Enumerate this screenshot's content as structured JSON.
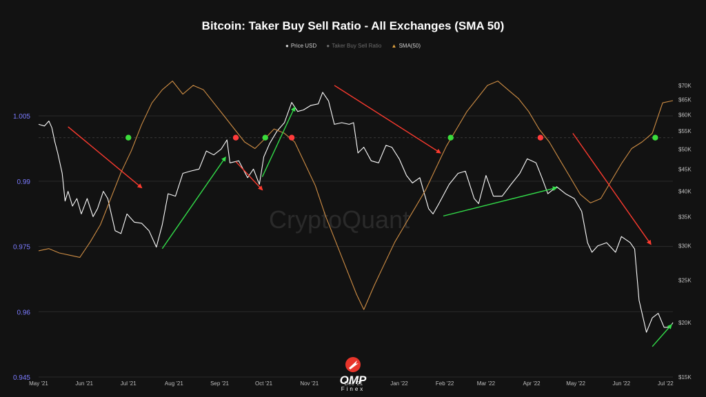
{
  "chart_data": {
    "type": "line",
    "title": "Bitcoin: Taker Buy Sell Ratio - All Exchanges (SMA 50)",
    "legend": [
      "Price USD",
      "Taker Buy Sell Ratio",
      "SMA(50)"
    ],
    "x_ticks": [
      "May '21",
      "Jun '21",
      "Jul '21",
      "Aug '21",
      "Sep '21",
      "Oct '21",
      "Nov '21",
      "Dec '21",
      "Jan '22",
      "Feb '22",
      "Mar '22",
      "Apr '22",
      "May '22",
      "Jun '22",
      "Jul '22"
    ],
    "x_range": [
      "2021-05-01",
      "2022-07-06"
    ],
    "y_left": {
      "ticks": [
        0.945,
        0.96,
        0.975,
        0.99,
        1.005
      ],
      "ylim": [
        0.945,
        1.015
      ],
      "color": "#7b7bff"
    },
    "y_right": {
      "ticks": [
        "$15K",
        "$20K",
        "$25K",
        "$30K",
        "$35K",
        "$40K",
        "$45K",
        "$50K",
        "$55K",
        "$60K",
        "$65K",
        "$70K"
      ],
      "values": [
        15000,
        20000,
        25000,
        30000,
        35000,
        40000,
        45000,
        50000,
        55000,
        60000,
        65000,
        70000
      ],
      "scale": "log"
    },
    "grid": true,
    "reference_line": 1.0,
    "series": [
      {
        "name": "Price USD",
        "axis": "right",
        "color": "#ffffff",
        "points": [
          [
            "2021-05-01",
            57000
          ],
          [
            "2021-05-05",
            56500
          ],
          [
            "2021-05-08",
            58000
          ],
          [
            "2021-05-10",
            56000
          ],
          [
            "2021-05-12",
            52000
          ],
          [
            "2021-05-14",
            49000
          ],
          [
            "2021-05-17",
            44000
          ],
          [
            "2021-05-19",
            38000
          ],
          [
            "2021-05-21",
            40000
          ],
          [
            "2021-05-24",
            37000
          ],
          [
            "2021-05-27",
            38500
          ],
          [
            "2021-05-30",
            35500
          ],
          [
            "2021-06-03",
            38500
          ],
          [
            "2021-06-07",
            35000
          ],
          [
            "2021-06-10",
            36500
          ],
          [
            "2021-06-14",
            40000
          ],
          [
            "2021-06-17",
            38500
          ],
          [
            "2021-06-22",
            32500
          ],
          [
            "2021-06-26",
            32000
          ],
          [
            "2021-06-30",
            35500
          ],
          [
            "2021-07-05",
            34000
          ],
          [
            "2021-07-10",
            33800
          ],
          [
            "2021-07-15",
            32500
          ],
          [
            "2021-07-20",
            29800
          ],
          [
            "2021-07-24",
            33500
          ],
          [
            "2021-07-28",
            39500
          ],
          [
            "2021-08-02",
            39000
          ],
          [
            "2021-08-07",
            44000
          ],
          [
            "2021-08-12",
            44500
          ],
          [
            "2021-08-18",
            45000
          ],
          [
            "2021-08-23",
            49500
          ],
          [
            "2021-08-28",
            48500
          ],
          [
            "2021-09-02",
            50000
          ],
          [
            "2021-09-06",
            52500
          ],
          [
            "2021-09-08",
            46500
          ],
          [
            "2021-09-14",
            47000
          ],
          [
            "2021-09-20",
            43000
          ],
          [
            "2021-09-24",
            45000
          ],
          [
            "2021-09-28",
            41500
          ],
          [
            "2021-10-01",
            48000
          ],
          [
            "2021-10-05",
            51500
          ],
          [
            "2021-10-10",
            55000
          ],
          [
            "2021-10-15",
            57500
          ],
          [
            "2021-10-20",
            64000
          ],
          [
            "2021-10-24",
            61000
          ],
          [
            "2021-10-28",
            61500
          ],
          [
            "2021-11-02",
            63000
          ],
          [
            "2021-11-07",
            63500
          ],
          [
            "2021-11-10",
            67500
          ],
          [
            "2021-11-14",
            64500
          ],
          [
            "2021-11-18",
            57000
          ],
          [
            "2021-11-23",
            57500
          ],
          [
            "2021-11-28",
            57000
          ],
          [
            "2021-12-01",
            57500
          ],
          [
            "2021-12-04",
            49000
          ],
          [
            "2021-12-08",
            50500
          ],
          [
            "2021-12-13",
            47000
          ],
          [
            "2021-12-18",
            46500
          ],
          [
            "2021-12-23",
            51000
          ],
          [
            "2021-12-27",
            50500
          ],
          [
            "2022-01-01",
            47500
          ],
          [
            "2022-01-06",
            43500
          ],
          [
            "2022-01-10",
            41800
          ],
          [
            "2022-01-15",
            43000
          ],
          [
            "2022-01-21",
            36500
          ],
          [
            "2022-01-24",
            35500
          ],
          [
            "2022-01-28",
            37500
          ],
          [
            "2022-02-04",
            41500
          ],
          [
            "2022-02-10",
            44000
          ],
          [
            "2022-02-15",
            44500
          ],
          [
            "2022-02-21",
            38500
          ],
          [
            "2022-02-24",
            37500
          ],
          [
            "2022-03-01",
            43500
          ],
          [
            "2022-03-06",
            39000
          ],
          [
            "2022-03-12",
            39000
          ],
          [
            "2022-03-18",
            41500
          ],
          [
            "2022-03-24",
            44000
          ],
          [
            "2022-03-29",
            47500
          ],
          [
            "2022-04-04",
            46500
          ],
          [
            "2022-04-08",
            43000
          ],
          [
            "2022-04-12",
            39500
          ],
          [
            "2022-04-18",
            41000
          ],
          [
            "2022-04-24",
            39500
          ],
          [
            "2022-04-30",
            38500
          ],
          [
            "2022-05-05",
            36000
          ],
          [
            "2022-05-09",
            30500
          ],
          [
            "2022-05-12",
            29000
          ],
          [
            "2022-05-16",
            30000
          ],
          [
            "2022-05-22",
            30500
          ],
          [
            "2022-05-28",
            29000
          ],
          [
            "2022-06-01",
            31500
          ],
          [
            "2022-06-07",
            30500
          ],
          [
            "2022-06-10",
            29500
          ],
          [
            "2022-06-13",
            22500
          ],
          [
            "2022-06-18",
            19000
          ],
          [
            "2022-06-22",
            20500
          ],
          [
            "2022-06-26",
            21000
          ],
          [
            "2022-06-30",
            19500
          ],
          [
            "2022-07-04",
            19500
          ],
          [
            "2022-07-06",
            20000
          ]
        ]
      },
      {
        "name": "SMA(50)",
        "axis": "left",
        "color": "#d18f45",
        "points": [
          [
            "2021-05-01",
            0.974
          ],
          [
            "2021-05-08",
            0.9745
          ],
          [
            "2021-05-15",
            0.9735
          ],
          [
            "2021-05-22",
            0.973
          ],
          [
            "2021-05-29",
            0.9725
          ],
          [
            "2021-06-05",
            0.976
          ],
          [
            "2021-06-12",
            0.98
          ],
          [
            "2021-06-19",
            0.986
          ],
          [
            "2021-06-26",
            0.992
          ],
          [
            "2021-07-03",
            0.997
          ],
          [
            "2021-07-10",
            1.003
          ],
          [
            "2021-07-17",
            1.008
          ],
          [
            "2021-07-24",
            1.011
          ],
          [
            "2021-07-31",
            1.013
          ],
          [
            "2021-08-07",
            1.01
          ],
          [
            "2021-08-14",
            1.012
          ],
          [
            "2021-08-21",
            1.011
          ],
          [
            "2021-08-28",
            1.008
          ],
          [
            "2021-09-04",
            1.005
          ],
          [
            "2021-09-11",
            1.002
          ],
          [
            "2021-09-18",
            0.999
          ],
          [
            "2021-09-25",
            0.9975
          ],
          [
            "2021-10-01",
            0.9995
          ],
          [
            "2021-10-08",
            1.002
          ],
          [
            "2021-10-15",
            1.001
          ],
          [
            "2021-10-22",
            0.999
          ],
          [
            "2021-10-29",
            0.994
          ],
          [
            "2021-11-05",
            0.989
          ],
          [
            "2021-11-12",
            0.982
          ],
          [
            "2021-11-19",
            0.976
          ],
          [
            "2021-11-26",
            0.97
          ],
          [
            "2021-12-03",
            0.964
          ],
          [
            "2021-12-08",
            0.9605
          ],
          [
            "2021-12-15",
            0.966
          ],
          [
            "2021-12-22",
            0.971
          ],
          [
            "2021-12-29",
            0.976
          ],
          [
            "2022-01-05",
            0.98
          ],
          [
            "2022-01-12",
            0.984
          ],
          [
            "2022-01-19",
            0.988
          ],
          [
            "2022-01-26",
            0.993
          ],
          [
            "2022-02-02",
            0.998
          ],
          [
            "2022-02-09",
            1.002
          ],
          [
            "2022-02-16",
            1.006
          ],
          [
            "2022-02-23",
            1.009
          ],
          [
            "2022-03-02",
            1.012
          ],
          [
            "2022-03-09",
            1.013
          ],
          [
            "2022-03-16",
            1.011
          ],
          [
            "2022-03-23",
            1.009
          ],
          [
            "2022-03-30",
            1.006
          ],
          [
            "2022-04-06",
            1.002
          ],
          [
            "2022-04-13",
            0.999
          ],
          [
            "2022-04-20",
            0.995
          ],
          [
            "2022-04-27",
            0.991
          ],
          [
            "2022-05-04",
            0.987
          ],
          [
            "2022-05-11",
            0.985
          ],
          [
            "2022-05-18",
            0.986
          ],
          [
            "2022-05-25",
            0.99
          ],
          [
            "2022-06-01",
            0.994
          ],
          [
            "2022-06-08",
            0.9975
          ],
          [
            "2022-06-15",
            0.999
          ],
          [
            "2022-06-22",
            1.001
          ],
          [
            "2022-06-29",
            1.008
          ],
          [
            "2022-07-06",
            1.0085
          ]
        ]
      }
    ],
    "markers": [
      {
        "date": "2021-07-01",
        "value": 1.0,
        "color": "#3bdc3b"
      },
      {
        "date": "2021-09-12",
        "value": 1.0,
        "color": "#ff3b3b"
      },
      {
        "date": "2021-10-02",
        "value": 1.0,
        "color": "#3bdc3b"
      },
      {
        "date": "2021-10-20",
        "value": 1.0,
        "color": "#ff3b3b"
      },
      {
        "date": "2022-02-05",
        "value": 1.0,
        "color": "#3bdc3b"
      },
      {
        "date": "2022-04-07",
        "value": 1.0,
        "color": "#ff3b3b"
      },
      {
        "date": "2022-06-24",
        "value": 1.0,
        "color": "#3bdc3b"
      }
    ],
    "annotations": [
      {
        "kind": "arrow",
        "color": "#ff3b2f",
        "from": [
          "2021-05-21",
          1.0025
        ],
        "to": [
          "2021-07-10",
          0.9885
        ]
      },
      {
        "kind": "arrow",
        "color": "#33e04a",
        "from": [
          "2021-07-24",
          0.9745
        ],
        "to": [
          "2021-09-05",
          0.9955
        ]
      },
      {
        "kind": "arrow",
        "color": "#ff3b2f",
        "from": [
          "2021-09-12",
          0.9945
        ],
        "to": [
          "2021-09-30",
          0.988
        ]
      },
      {
        "kind": "arrow",
        "color": "#33e04a",
        "from": [
          "2021-09-30",
          0.991
        ],
        "to": [
          "2021-10-22",
          1.007
        ]
      },
      {
        "kind": "arrow",
        "color": "#ff3b2f",
        "from": [
          "2021-11-18",
          1.012
        ],
        "to": [
          "2022-01-29",
          0.9965
        ]
      },
      {
        "kind": "arrow",
        "color": "#33e04a",
        "from": [
          "2022-01-31",
          0.982
        ],
        "to": [
          "2022-04-18",
          0.9885
        ]
      },
      {
        "kind": "arrow",
        "color": "#ff3b2f",
        "from": [
          "2022-04-29",
          1.001
        ],
        "to": [
          "2022-06-21",
          0.9755
        ]
      },
      {
        "kind": "arrow",
        "color": "#33e04a",
        "from": [
          "2022-06-22",
          0.952
        ],
        "to": [
          "2022-07-05",
          0.957
        ]
      }
    ],
    "watermark": "CryptoQuant"
  },
  "logo": {
    "text": "OMP",
    "sub": "Finex"
  }
}
